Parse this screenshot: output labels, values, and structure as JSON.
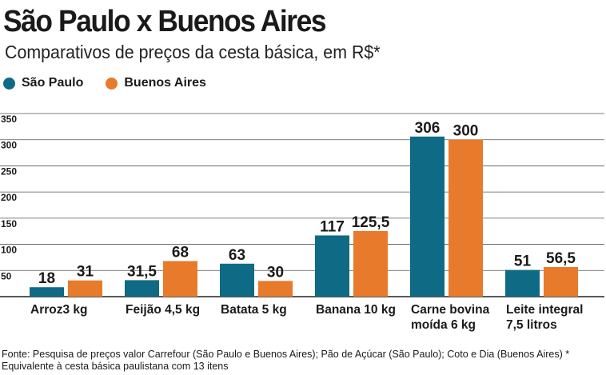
{
  "header": {
    "title": "São Paulo x Buenos Aires",
    "subtitle": "Comparativos de preços da cesta básica, em R$*"
  },
  "legend": [
    {
      "label": "São Paulo",
      "color": "#0f6a85"
    },
    {
      "label": "Buenos Aires",
      "color": "#e87a2b"
    }
  ],
  "chart_data": {
    "type": "bar",
    "title": "São Paulo x Buenos Aires",
    "subtitle": "Comparativos de preços da cesta básica, em R$*",
    "categories": [
      [
        "Arroz3 kg"
      ],
      [
        "Feijão 4,5 kg"
      ],
      [
        "Batata 5 kg"
      ],
      [
        "Banana 10 kg"
      ],
      [
        "Carne bovina",
        "moída 6 kg"
      ],
      [
        "Leite integral",
        "7,5 litros"
      ]
    ],
    "series": [
      {
        "name": "São Paulo",
        "color": "#0f6a85",
        "values": [
          18,
          31.5,
          63,
          117,
          306,
          51
        ],
        "labels": [
          "18",
          "31,5",
          "63",
          "117",
          "306",
          "51"
        ]
      },
      {
        "name": "Buenos Aires",
        "color": "#e87a2b",
        "values": [
          31,
          68,
          30,
          125.5,
          300,
          56.5
        ],
        "labels": [
          "31",
          "68",
          "30",
          "125,5",
          "300",
          "56,5"
        ]
      }
    ],
    "yticks": [
      50,
      100,
      150,
      200,
      250,
      300,
      350
    ],
    "ylim": [
      0,
      350
    ],
    "grid": true,
    "legend_position": "top-left"
  },
  "footer": {
    "line1": "Fonte: Pesquisa de preços valor Carrefour (São Paulo e Buenos Aires); Pão de Açúcar (São Paulo); Coto e Dia (Buenos Aires) *",
    "line2": "Equivalente à cesta básica paulistana com 13 itens"
  }
}
